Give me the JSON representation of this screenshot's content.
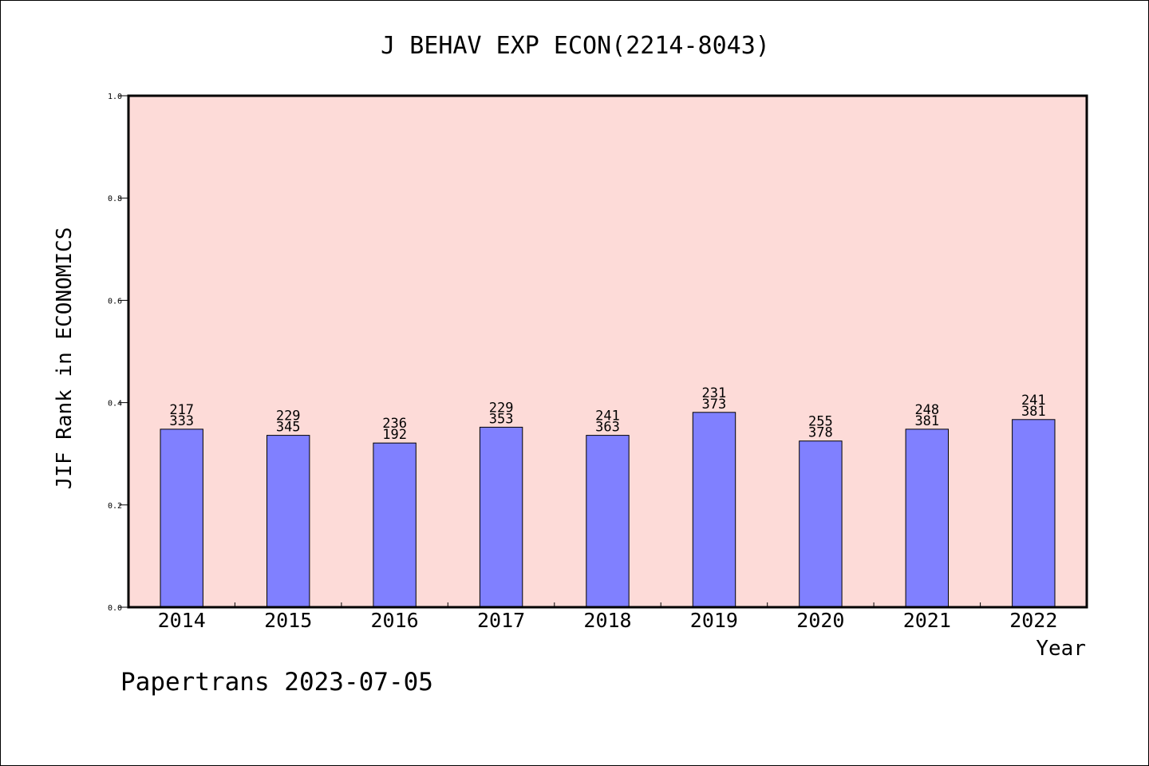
{
  "chart_data": {
    "type": "bar",
    "title": "J BEHAV EXP ECON(2214-8043)",
    "xlabel": "Year",
    "ylabel": "JIF Rank in ECONOMICS",
    "ylim": [
      0.0,
      1.0
    ],
    "yticks": [
      "0.0",
      "0.2",
      "0.4",
      "0.6",
      "0.8",
      "1.0"
    ],
    "grid": false,
    "categories": [
      "2014",
      "2015",
      "2016",
      "2017",
      "2018",
      "2019",
      "2020",
      "2021",
      "2022"
    ],
    "values": [
      0.348,
      0.336,
      0.321,
      0.352,
      0.336,
      0.381,
      0.325,
      0.348,
      0.367
    ],
    "label_top": [
      "217",
      "229",
      "236",
      "229",
      "241",
      "231",
      "255",
      "248",
      "241"
    ],
    "label_bottom": [
      "333",
      "345",
      "192",
      "353",
      "363",
      "373",
      "378",
      "381",
      "381"
    ],
    "colors": {
      "plot_background": "#fddbd8",
      "bar_fill": "#8080ff",
      "bar_stroke": "#000000"
    }
  },
  "footer": {
    "text": "Papertrans 2023-07-05"
  }
}
